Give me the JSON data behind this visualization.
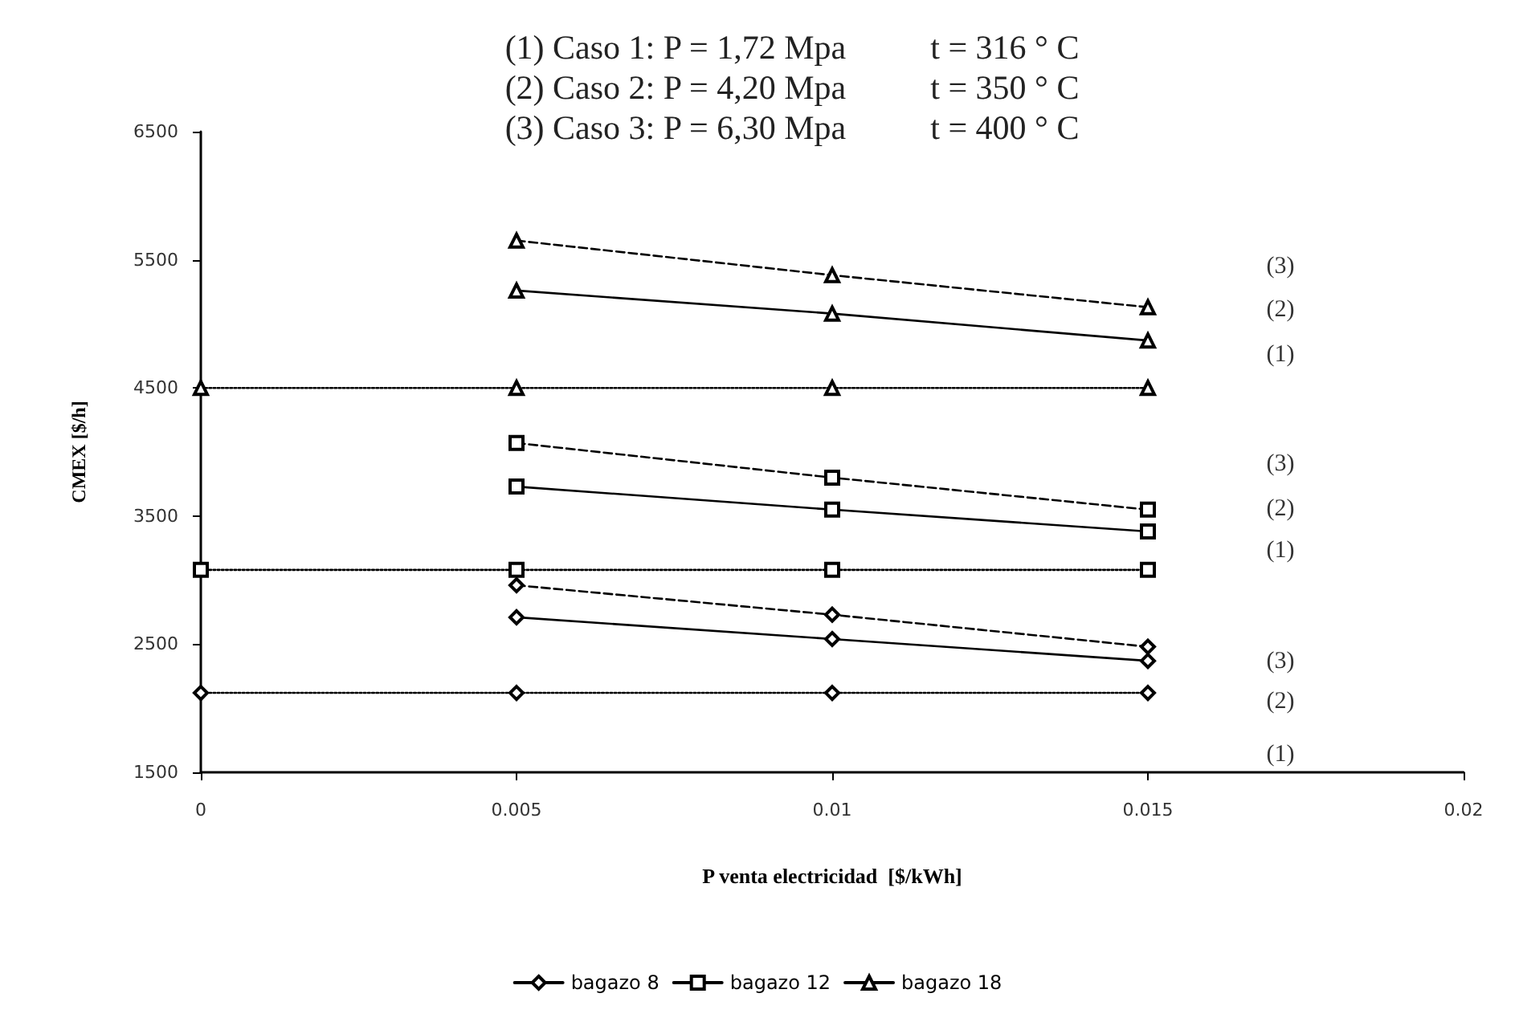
{
  "chart_data": {
    "type": "line",
    "title": "(1) Caso 1: P = 1,72 Mpa          t = 316 ° C\n(2) Caso 2: P = 4,20 Mpa          t = 350 ° C\n(3) Caso 3: P = 6,30 Mpa          t = 400 ° C",
    "xlabel": "P venta electricidad  [$/kWh]",
    "ylabel": "CMEX [$/h]",
    "series": [
      {
        "color": "#000000",
        "marker": "diamond",
        "line_style": "dotted",
        "x": [
          0,
          0.005,
          0.01,
          0.015
        ],
        "values": [
          2120,
          2120,
          2120,
          2120
        ]
      },
      {
        "name": "bagazo 8",
        "color": "#000000",
        "marker": "diamond",
        "line_style": "solid",
        "x": [
          0.005,
          0.01,
          0.015
        ],
        "values": [
          2710,
          2540,
          2370
        ]
      },
      {
        "color": "#000000",
        "marker": "diamond",
        "line_style": "dashed",
        "x": [
          0.005,
          0.01,
          0.015
        ],
        "values": [
          2960,
          2730,
          2480
        ]
      },
      {
        "color": "#000000",
        "marker": "square",
        "line_style": "dotted",
        "x": [
          0,
          0.005,
          0.01,
          0.015
        ],
        "values": [
          3080,
          3080,
          3080,
          3080
        ]
      },
      {
        "name": "bagazo 12",
        "color": "#000000",
        "marker": "square",
        "line_style": "solid",
        "x": [
          0.005,
          0.01,
          0.015
        ],
        "values": [
          3730,
          3550,
          3380
        ]
      },
      {
        "color": "#000000",
        "marker": "square",
        "line_style": "dashed",
        "x": [
          0.005,
          0.01,
          0.015
        ],
        "values": [
          4070,
          3800,
          3550
        ]
      },
      {
        "color": "#000000",
        "marker": "triangle",
        "line_style": "dotted",
        "x": [
          0,
          0.005,
          0.01,
          0.015
        ],
        "values": [
          4500,
          4500,
          4500,
          4500
        ]
      },
      {
        "name": "bagazo 18",
        "color": "#000000",
        "marker": "triangle",
        "line_style": "solid",
        "x": [
          0.005,
          0.01,
          0.015
        ],
        "values": [
          5260,
          5080,
          4870
        ]
      },
      {
        "color": "#000000",
        "marker": "triangle",
        "line_style": "dashed",
        "x": [
          0.005,
          0.01,
          0.015
        ],
        "values": [
          5650,
          5380,
          5130
        ]
      }
    ],
    "xlim": [
      0,
      0.02
    ],
    "xticks": [
      0,
      0.005,
      0.01,
      0.015,
      0.02
    ],
    "ylim": [
      1500,
      6500
    ],
    "yticks": [
      1500,
      2500,
      3500,
      4500,
      5500,
      6500
    ],
    "grid": false,
    "legend": "bottom",
    "annotations": [
      "(3)",
      "(2)",
      "(1)",
      "(3)",
      "(2)",
      "(1)",
      "(3)",
      "(2)",
      "(1)"
    ]
  }
}
